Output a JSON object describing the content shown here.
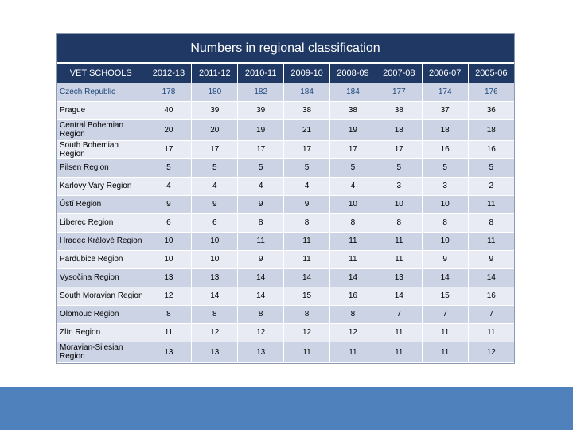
{
  "title": "Numbers in regional classification",
  "columns": [
    "VET SCHOOLS",
    "2012-13",
    "2011-12",
    "2010-11",
    "2009-10",
    "2008-09",
    "2007-08",
    "2006-07",
    "2005-06"
  ],
  "rows": [
    {
      "region": "Czech Republic",
      "values": [
        "178",
        "180",
        "182",
        "184",
        "184",
        "177",
        "174",
        "176"
      ],
      "h": 23
    },
    {
      "region": "Prague",
      "values": [
        "40",
        "39",
        "39",
        "38",
        "38",
        "38",
        "37",
        "36"
      ],
      "h": 23
    },
    {
      "region": "Central Bohemian Region",
      "values": [
        "20",
        "20",
        "19",
        "21",
        "19",
        "18",
        "18",
        "18"
      ],
      "h": 26
    },
    {
      "region": "South Bohemian Region",
      "values": [
        "17",
        "17",
        "17",
        "17",
        "17",
        "17",
        "16",
        "16"
      ],
      "h": 23
    },
    {
      "region": "Pilsen Region",
      "values": [
        "5",
        "5",
        "5",
        "5",
        "5",
        "5",
        "5",
        "5"
      ],
      "h": 23
    },
    {
      "region": "Karlovy Vary Region",
      "values": [
        "4",
        "4",
        "4",
        "4",
        "4",
        "3",
        "3",
        "2"
      ],
      "h": 23
    },
    {
      "region": "Ústí Region",
      "values": [
        "9",
        "9",
        "9",
        "9",
        "10",
        "10",
        "10",
        "11"
      ],
      "h": 23
    },
    {
      "region": "Liberec Region",
      "values": [
        "6",
        "6",
        "8",
        "8",
        "8",
        "8",
        "8",
        "8"
      ],
      "h": 23
    },
    {
      "region": "Hradec Králové Region",
      "values": [
        "10",
        "10",
        "11",
        "11",
        "11",
        "11",
        "10",
        "11"
      ],
      "h": 23
    },
    {
      "region": "Pardubice Region",
      "values": [
        "10",
        "10",
        "9",
        "11",
        "11",
        "11",
        "9",
        "9"
      ],
      "h": 23
    },
    {
      "region": "Vysočina Region",
      "values": [
        "13",
        "13",
        "14",
        "14",
        "14",
        "13",
        "14",
        "14"
      ],
      "h": 23
    },
    {
      "region": "South Moravian Region",
      "values": [
        "12",
        "14",
        "14",
        "15",
        "16",
        "14",
        "15",
        "16"
      ],
      "h": 23
    },
    {
      "region": "Olomouc Region",
      "values": [
        "8",
        "8",
        "8",
        "8",
        "8",
        "7",
        "7",
        "7"
      ],
      "h": 23
    },
    {
      "region": "Zlín Region",
      "values": [
        "11",
        "12",
        "12",
        "12",
        "12",
        "11",
        "11",
        "11"
      ],
      "h": 23
    },
    {
      "region": "Moravian-Silesian Region",
      "values": [
        "13",
        "13",
        "13",
        "11",
        "11",
        "11",
        "11",
        "12"
      ],
      "h": 26
    }
  ]
}
